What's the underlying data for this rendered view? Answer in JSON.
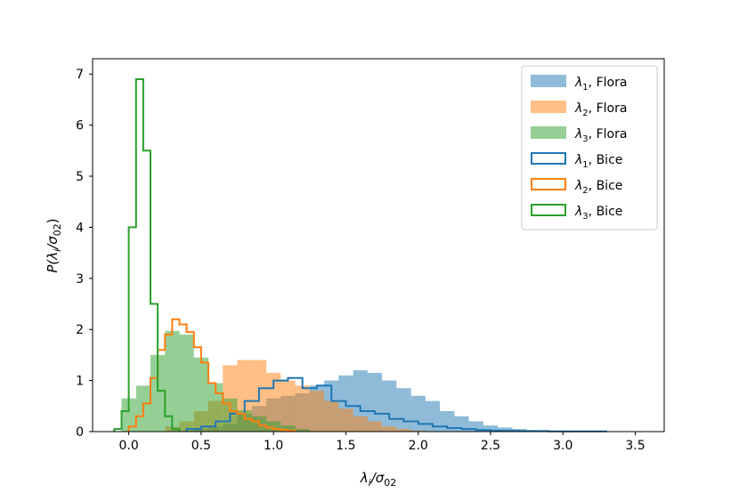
{
  "chart_data": {
    "type": "histogram",
    "title": "",
    "xlabel": {
      "main": "λ",
      "sub": "i",
      "rest": "/σ",
      "sub2": "02"
    },
    "ylabel": {
      "pre": "P(λ",
      "sub": "i",
      "mid": "/σ",
      "sub2": "02",
      "post": ")"
    },
    "xlim": [
      -0.25,
      3.7
    ],
    "ylim": [
      0,
      7.3
    ],
    "xticks": [
      0.0,
      0.5,
      1.0,
      1.5,
      2.0,
      2.5,
      3.0,
      3.5
    ],
    "xtick_labels": [
      "0.0",
      "0.5",
      "1.0",
      "1.5",
      "2.0",
      "2.5",
      "3.0",
      "3.5"
    ],
    "yticks": [
      0,
      1,
      2,
      3,
      4,
      5,
      6,
      7
    ],
    "ytick_labels": [
      "0",
      "1",
      "2",
      "3",
      "4",
      "5",
      "6",
      "7"
    ],
    "legend_position": "top-right",
    "series": [
      {
        "name": "λ1, Flora",
        "legend_sym": "λ",
        "legend_sub": "1",
        "legend_rest": ", Flora",
        "style": "filled",
        "color": "#1f77b4",
        "edges": [
          0.45,
          0.55,
          0.65,
          0.75,
          0.85,
          0.95,
          1.05,
          1.15,
          1.25,
          1.35,
          1.45,
          1.55,
          1.65,
          1.75,
          1.85,
          1.95,
          2.05,
          2.15,
          2.25,
          2.35,
          2.45,
          2.55,
          2.65,
          2.75,
          2.85,
          2.95,
          3.05,
          3.15,
          3.25,
          3.35
        ],
        "values": [
          0.05,
          0.1,
          0.15,
          0.35,
          0.5,
          0.65,
          0.7,
          0.75,
          0.9,
          1.0,
          1.1,
          1.2,
          1.15,
          1.0,
          0.85,
          0.7,
          0.6,
          0.4,
          0.3,
          0.2,
          0.12,
          0.08,
          0.05,
          0.03,
          0.02,
          0.01,
          0.01,
          0.005,
          0.005
        ]
      },
      {
        "name": "λ2, Flora",
        "legend_sym": "λ",
        "legend_sub": "2",
        "legend_rest": ", Flora",
        "style": "filled",
        "color": "#ff7f0e",
        "edges": [
          0.25,
          0.35,
          0.45,
          0.55,
          0.65,
          0.75,
          0.85,
          0.95,
          1.05,
          1.15,
          1.25,
          1.35,
          1.45,
          1.55,
          1.65,
          1.75,
          1.85,
          1.95,
          2.05
        ],
        "values": [
          0.1,
          0.2,
          0.4,
          0.6,
          1.3,
          1.4,
          1.4,
          1.15,
          1.0,
          0.9,
          0.8,
          0.6,
          0.45,
          0.3,
          0.2,
          0.1,
          0.05,
          0.02
        ]
      },
      {
        "name": "λ3, Flora",
        "legend_sym": "λ",
        "legend_sub": "3",
        "legend_rest": ", Flora",
        "style": "filled",
        "color": "#2ca02c",
        "edges": [
          -0.05,
          0.05,
          0.15,
          0.25,
          0.35,
          0.45,
          0.55,
          0.65,
          0.75,
          0.85,
          0.95,
          1.05,
          1.15,
          1.25
        ],
        "values": [
          0.65,
          0.9,
          1.5,
          1.97,
          1.9,
          1.45,
          0.95,
          0.65,
          0.42,
          0.3,
          0.2,
          0.12,
          0.05
        ]
      },
      {
        "name": "λ1, Bice",
        "legend_sym": "λ",
        "legend_sub": "1",
        "legend_rest": ", Bice",
        "style": "step",
        "color": "#1f77b4",
        "edges": [
          0.4,
          0.5,
          0.6,
          0.7,
          0.8,
          0.9,
          1.0,
          1.1,
          1.2,
          1.3,
          1.4,
          1.5,
          1.6,
          1.7,
          1.8,
          1.9,
          2.0,
          2.1,
          2.2,
          2.3,
          2.4,
          2.5,
          2.6,
          2.7,
          2.8,
          2.9,
          3.0,
          3.1,
          3.2,
          3.3
        ],
        "values": [
          0.05,
          0.1,
          0.2,
          0.35,
          0.6,
          0.85,
          1.0,
          1.05,
          0.85,
          0.9,
          0.6,
          0.5,
          0.4,
          0.35,
          0.25,
          0.2,
          0.15,
          0.1,
          0.07,
          0.05,
          0.03,
          0.02,
          0.015,
          0.01,
          0.01,
          0.005,
          0.005,
          0.005,
          0.005
        ]
      },
      {
        "name": "λ2, Bice",
        "legend_sym": "λ",
        "legend_sub": "2",
        "legend_rest": ", Bice",
        "style": "step",
        "color": "#ff7f0e",
        "edges": [
          0.0,
          0.05,
          0.1,
          0.15,
          0.2,
          0.25,
          0.3,
          0.35,
          0.4,
          0.45,
          0.5,
          0.55,
          0.6,
          0.65,
          0.7,
          0.75,
          0.8,
          0.85,
          0.9,
          0.95,
          1.0,
          1.05,
          1.1,
          1.15
        ],
        "values": [
          0.1,
          0.3,
          0.55,
          1.05,
          1.6,
          1.9,
          2.2,
          2.1,
          1.95,
          1.65,
          1.35,
          0.95,
          0.75,
          0.55,
          0.4,
          0.35,
          0.25,
          0.2,
          0.12,
          0.08,
          0.05,
          0.03,
          0.02
        ]
      },
      {
        "name": "λ3, Bice",
        "legend_sym": "λ",
        "legend_sub": "3",
        "legend_rest": ", Bice",
        "style": "step",
        "color": "#2ca02c",
        "edges": [
          -0.1,
          -0.05,
          0.0,
          0.05,
          0.1,
          0.15,
          0.2,
          0.25,
          0.3,
          0.35
        ],
        "values": [
          0.05,
          0.4,
          4.0,
          6.9,
          5.5,
          2.5,
          0.8,
          0.3,
          0.05
        ]
      }
    ]
  }
}
